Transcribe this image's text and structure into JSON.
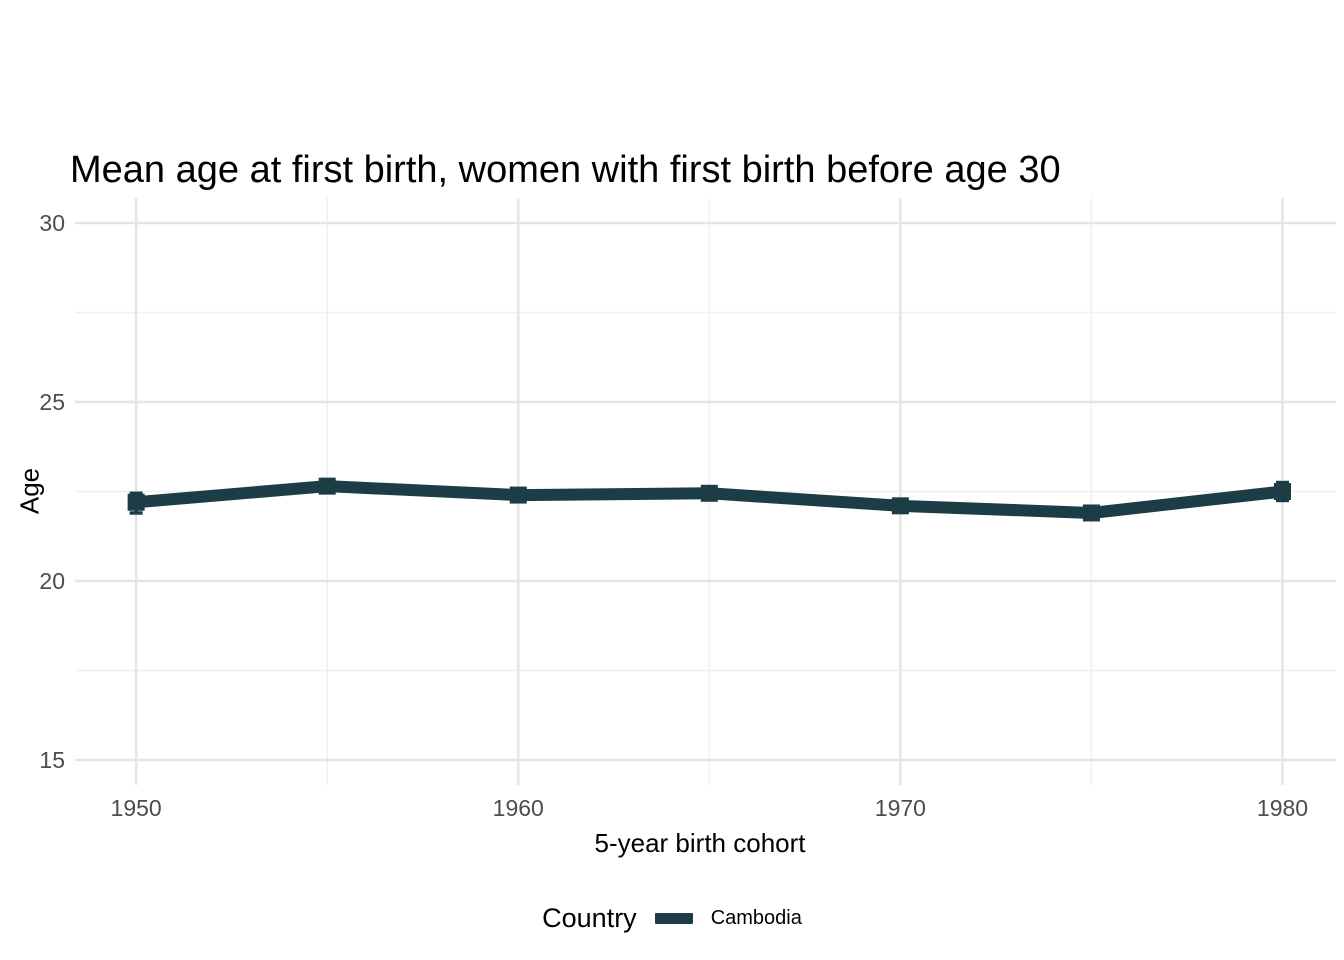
{
  "chart_data": {
    "type": "line",
    "title": "Mean age at first birth, women with first birth before age 30",
    "xlabel": "5-year birth cohort",
    "ylabel": "Age",
    "xlim": [
      1948.4,
      1981.4
    ],
    "ylim": [
      14.3,
      30.7
    ],
    "x_major_ticks": [
      1950,
      1960,
      1970,
      1980
    ],
    "x_minor_gridlines": [
      1955,
      1965,
      1975
    ],
    "y_major_ticks": [
      15,
      20,
      25,
      30
    ],
    "y_minor_gridlines": [
      17.5,
      22.5,
      27.5
    ],
    "grid": "major and minor gridlines, light gray on white background",
    "legend_position": "bottom",
    "legend": {
      "title": "Country",
      "entries": [
        {
          "label": "Cambodia",
          "color": "#1c3c46"
        }
      ]
    },
    "series": [
      {
        "name": "Cambodia",
        "color": "#1c3c46",
        "marker": "square",
        "error_bars": true,
        "x": [
          1950,
          1955,
          1960,
          1965,
          1970,
          1975,
          1980
        ],
        "y": [
          22.2,
          22.65,
          22.4,
          22.45,
          22.1,
          21.9,
          22.5
        ],
        "ci_lower": [
          21.9,
          22.55,
          22.3,
          22.35,
          22.0,
          21.8,
          22.25
        ],
        "ci_upper": [
          22.45,
          22.8,
          22.5,
          22.55,
          22.2,
          22.0,
          22.75
        ]
      }
    ],
    "colors": {
      "series": "#1c3c46",
      "grid_major": "#e5e5e5",
      "grid_minor": "#f0f0f0",
      "tick_label": "#4d4d4d",
      "text": "#000000",
      "background": "#ffffff"
    }
  }
}
